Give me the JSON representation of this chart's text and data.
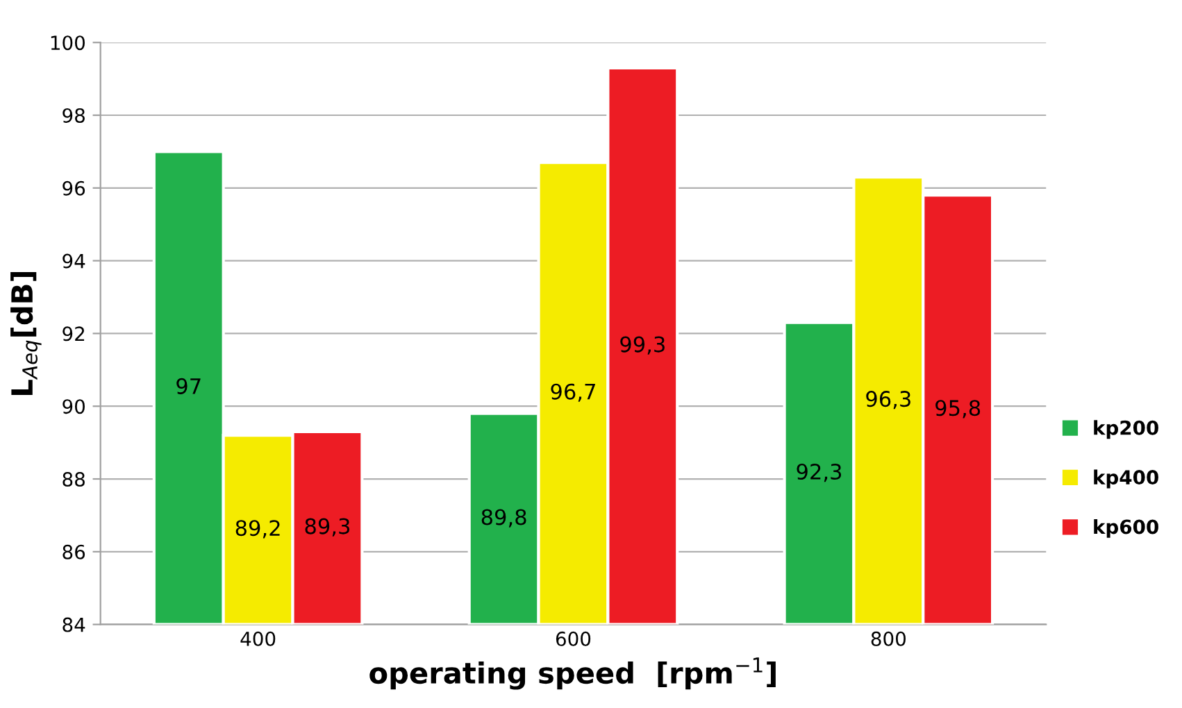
{
  "chart_data": {
    "type": "bar",
    "xlabel": "operating speed  [rpm$^{−1}$]",
    "ylabel": "L$_{Aeq}$[dB]",
    "categories": [
      "400",
      "600",
      "800"
    ],
    "series": [
      {
        "name": "kp200",
        "color": "#22b14c",
        "values": [
          97,
          89.8,
          92.3
        ],
        "value_labels": [
          "97",
          "89,8",
          "92,3"
        ]
      },
      {
        "name": "kp400",
        "color": "#f5eb00",
        "values": [
          89.2,
          96.7,
          96.3
        ],
        "value_labels": [
          "89,2",
          "96,7",
          "96,3"
        ]
      },
      {
        "name": "kp600",
        "color": "#ed1c24",
        "values": [
          89.3,
          99.3,
          95.8
        ],
        "value_labels": [
          "89,3",
          "99,3",
          "95,8"
        ]
      }
    ],
    "ylim": [
      84,
      100
    ],
    "yticks": [
      84,
      86,
      88,
      90,
      92,
      94,
      96,
      98,
      100
    ],
    "grid": "y",
    "legend": "right"
  }
}
